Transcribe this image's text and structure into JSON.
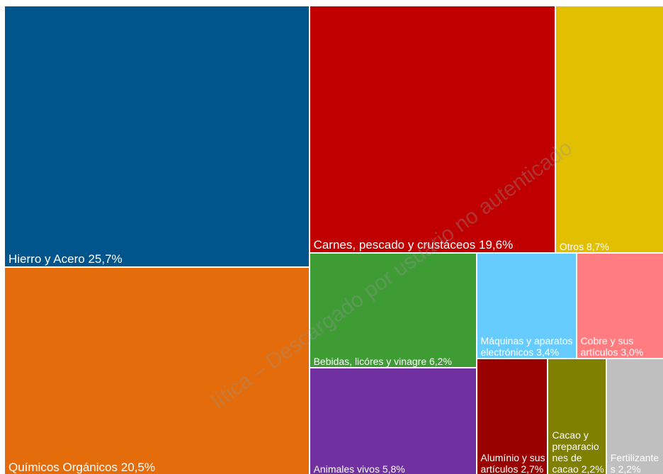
{
  "chart_data": {
    "type": "treemap",
    "categories": [
      "Hierro y Acero",
      "Químicos Orgánicos",
      "Carnes, pescado y crustáceos",
      "Otros",
      "Bebidas, licóres y vinagre",
      "Animales vivos",
      "Máquinas y aparatos electrónicos",
      "Cobre y sus artículos",
      "Alumínio y sus artículos",
      "Cacao y preparaciones de cacao",
      "Fertilizantes"
    ],
    "values": [
      25.7,
      20.5,
      19.6,
      8.7,
      6.2,
      5.8,
      3.4,
      3.0,
      2.7,
      2.2,
      2.2
    ],
    "value_labels": [
      "25,7%",
      "20,5%",
      "19,6%",
      "8,7%",
      "6,2%",
      "5,8%",
      "3,4%",
      "3,0%",
      "2,7%",
      "2,2%",
      "2,2%"
    ],
    "colors": [
      "#00558c",
      "#e46c0a",
      "#c00000",
      "#e2bf00",
      "#3f9c35",
      "#7030a0",
      "#66ccff",
      "#ff7c80",
      "#990000",
      "#7f7f00",
      "#bfbfbf"
    ],
    "watermark": "lítica – Descargado por usuario no autenticado"
  }
}
